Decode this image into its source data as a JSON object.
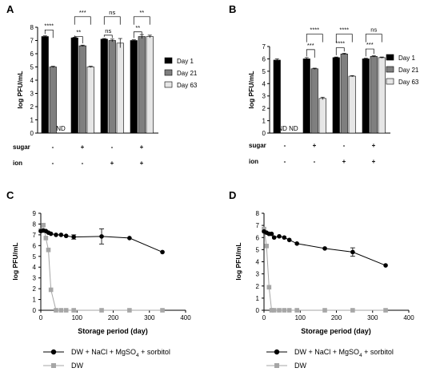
{
  "panel_labels": [
    "A",
    "B",
    "C",
    "D"
  ],
  "chart_data": [
    {
      "panel": "A",
      "type": "bar",
      "ylabel": "log PFU/mL",
      "ylim": [
        0,
        8
      ],
      "yticks": [
        0,
        1,
        2,
        3,
        4,
        5,
        6,
        7,
        8
      ],
      "legend": "right",
      "series": [
        {
          "name": "Day 1",
          "color": "#000000",
          "values": [
            7.3,
            7.2,
            7.1,
            7.0
          ]
        },
        {
          "name": "Day 21",
          "color": "#7f7f7f",
          "values": [
            5.0,
            6.6,
            7.0,
            7.3
          ]
        },
        {
          "name": "Day 63",
          "color": "#e6e6e6",
          "values": [
            null,
            5.0,
            6.8,
            7.3
          ]
        }
      ],
      "errors": [
        [
          0.05,
          0.05,
          0.05,
          0.05
        ],
        [
          0.05,
          0.05,
          0.1,
          0.15
        ],
        [
          0,
          0.05,
          0.35,
          0.1
        ]
      ],
      "rows": [
        {
          "label": "sugar",
          "values": [
            "-",
            "+",
            "-",
            "+"
          ]
        },
        {
          "label": "ion",
          "values": [
            "-",
            "-",
            "+",
            "+"
          ]
        }
      ],
      "nd": [
        {
          "group": 0,
          "text": "ND"
        }
      ],
      "significance": [
        {
          "group": 0,
          "pair": [
            0,
            1
          ],
          "text": "****",
          "level": 7.8
        },
        {
          "group": 1,
          "pair": [
            0,
            1
          ],
          "text": "**",
          "level": 7.3
        },
        {
          "group": 1,
          "pair": [
            0,
            2
          ],
          "text": "***",
          "level": 8.8
        },
        {
          "group": 2,
          "pair": [
            0,
            1
          ],
          "text": "ns",
          "level": 7.4
        },
        {
          "group": 2,
          "pair": [
            0,
            2
          ],
          "text": "ns",
          "level": 8.8
        },
        {
          "group": 3,
          "pair": [
            0,
            1
          ],
          "text": "**",
          "level": 7.65
        },
        {
          "group": 3,
          "pair": [
            0,
            2
          ],
          "text": "**",
          "level": 8.8
        }
      ]
    },
    {
      "panel": "B",
      "type": "bar",
      "ylabel": "log PFU/mL",
      "ylim": [
        0,
        7
      ],
      "yticks": [
        0,
        1,
        2,
        3,
        4,
        5,
        6,
        7
      ],
      "legend": "right",
      "series": [
        {
          "name": "Day 1",
          "color": "#000000",
          "values": [
            5.9,
            6.0,
            6.1,
            6.0
          ]
        },
        {
          "name": "Day 21",
          "color": "#7f7f7f",
          "values": [
            null,
            5.2,
            6.4,
            6.2
          ]
        },
        {
          "name": "Day 63",
          "color": "#e6e6e6",
          "values": [
            null,
            2.8,
            4.6,
            6.1
          ]
        }
      ],
      "errors": [
        [
          0.1,
          0.1,
          0.05,
          0.05
        ],
        [
          0,
          0.05,
          0.05,
          0.05
        ],
        [
          0,
          0.1,
          0.05,
          0.05
        ]
      ],
      "rows": [
        {
          "label": "sugar",
          "values": [
            "-",
            "+",
            "-",
            "+"
          ]
        },
        {
          "label": "ion",
          "values": [
            "-",
            "-",
            "+",
            "+"
          ]
        }
      ],
      "nd": [
        {
          "group": 0,
          "text": "ND ND"
        }
      ],
      "significance": [
        {
          "group": 1,
          "pair": [
            0,
            1
          ],
          "text": "***",
          "level": 6.75
        },
        {
          "group": 1,
          "pair": [
            0,
            2
          ],
          "text": "****",
          "level": 8.0
        },
        {
          "group": 2,
          "pair": [
            0,
            1
          ],
          "text": "****",
          "level": 6.9
        },
        {
          "group": 2,
          "pair": [
            0,
            2
          ],
          "text": "****",
          "level": 8.0
        },
        {
          "group": 3,
          "pair": [
            0,
            1
          ],
          "text": "***",
          "level": 6.8
        },
        {
          "group": 3,
          "pair": [
            0,
            2
          ],
          "text": "ns",
          "level": 8.0
        }
      ]
    },
    {
      "panel": "C",
      "type": "line",
      "xlabel": "Storage period (day)",
      "ylabel": "log PFU/mL",
      "xlim": [
        0,
        400
      ],
      "ylim": [
        0,
        9
      ],
      "xticks": [
        0,
        100,
        200,
        300,
        400
      ],
      "yticks": [
        0,
        1,
        2,
        3,
        4,
        5,
        6,
        7,
        8,
        9
      ],
      "series": [
        {
          "name": "DW + NaCl + MgSO4 + sorbitol",
          "color": "#000000",
          "marker": "circle",
          "x": [
            0,
            7,
            14,
            21,
            28,
            42,
            56,
            70,
            91,
            168,
            245,
            336
          ],
          "y": [
            7.35,
            7.4,
            7.35,
            7.2,
            7.1,
            7.0,
            7.0,
            6.9,
            6.8,
            6.85,
            6.7,
            5.4
          ],
          "err": [
            0,
            0,
            0,
            0,
            0,
            0,
            0,
            0,
            0.2,
            0.7,
            0,
            0
          ]
        },
        {
          "name": "DW",
          "color": "#a6a6a6",
          "marker": "square",
          "x": [
            0,
            7,
            14,
            21,
            28,
            42,
            56,
            70,
            91,
            168,
            245,
            336
          ],
          "y": [
            7.4,
            7.9,
            6.7,
            5.6,
            1.9,
            0,
            0,
            0,
            0,
            0,
            0,
            0
          ],
          "err": [
            0,
            0,
            0,
            0,
            0,
            0,
            0,
            0,
            0,
            0,
            0,
            0
          ]
        }
      ]
    },
    {
      "panel": "D",
      "type": "line",
      "xlabel": "Storage period (day)",
      "ylabel": "log PFU/mL",
      "xlim": [
        0,
        400
      ],
      "ylim": [
        0,
        8
      ],
      "xticks": [
        0,
        100,
        200,
        300,
        400
      ],
      "yticks": [
        0,
        1,
        2,
        3,
        4,
        5,
        6,
        7,
        8
      ],
      "series": [
        {
          "name": "DW + NaCl + MgSO4 + sorbitol",
          "color": "#000000",
          "marker": "circle",
          "x": [
            0,
            7,
            14,
            21,
            28,
            42,
            56,
            70,
            91,
            168,
            245,
            336
          ],
          "y": [
            6.5,
            6.4,
            6.3,
            6.3,
            6.0,
            6.1,
            6.0,
            5.8,
            5.5,
            5.1,
            4.8,
            3.7
          ],
          "err": [
            0,
            0,
            0,
            0,
            0,
            0,
            0,
            0,
            0,
            0,
            0.35,
            0
          ]
        },
        {
          "name": "DW",
          "color": "#a6a6a6",
          "marker": "square",
          "x": [
            0,
            7,
            14,
            21,
            28,
            42,
            56,
            70,
            91,
            168,
            245,
            336
          ],
          "y": [
            6.7,
            5.3,
            1.9,
            0,
            0,
            0,
            0,
            0,
            0,
            0,
            0,
            0
          ],
          "err": [
            0,
            0,
            0,
            0,
            0,
            0,
            0,
            0,
            0,
            0,
            0,
            0
          ]
        }
      ]
    }
  ],
  "bottom_legend": {
    "left": [
      "DW + NaCl + MgSO",
      "4",
      " + sorbitol",
      "DW"
    ],
    "right": [
      "DW + NaCl + MgSO",
      "4",
      " + sorbitol",
      "DW"
    ]
  }
}
